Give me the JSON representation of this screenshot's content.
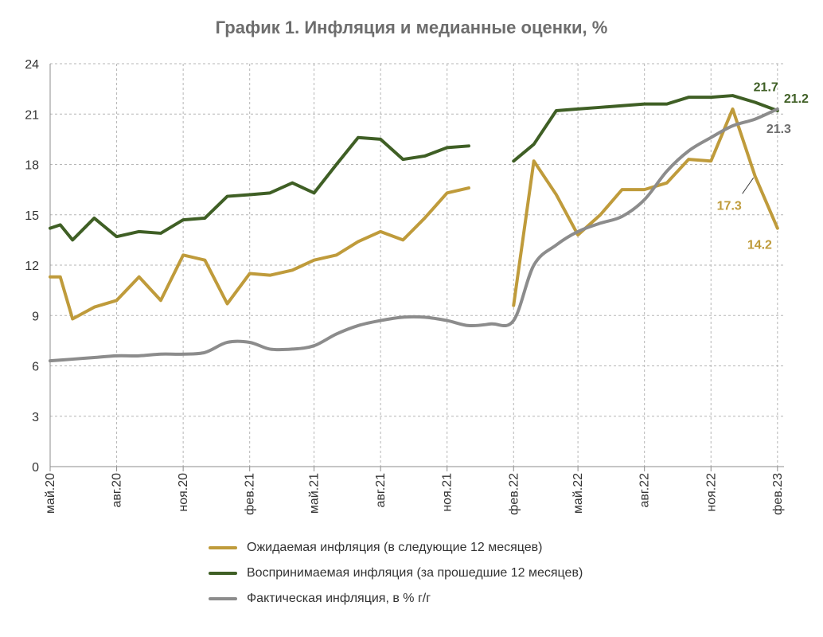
{
  "chart_data": {
    "type": "line",
    "title": "График 1. Инфляция и медианные оценки, %",
    "xlabel": "",
    "ylabel": "",
    "ylim": [
      0,
      24
    ],
    "yticks": [
      0,
      3,
      6,
      9,
      12,
      15,
      18,
      21,
      24
    ],
    "grid": true,
    "legend_position": "bottom",
    "x": [
      "2020-05",
      "2020-06",
      "2020-07",
      "2020-08",
      "2020-09",
      "2020-10",
      "2020-11",
      "2020-12",
      "2021-01",
      "2021-02",
      "2021-03",
      "2021-04",
      "2021-05",
      "2021-06",
      "2021-07",
      "2021-08",
      "2021-09",
      "2021-10",
      "2021-11",
      "2021-12",
      "2022-01",
      "2022-02",
      "2022-03",
      "2022-04",
      "2022-05",
      "2022-06",
      "2022-07",
      "2022-08",
      "2022-09",
      "2022-10",
      "2022-11",
      "2022-12",
      "2023-01",
      "2023-02"
    ],
    "tick_labels": [
      {
        "x": "2020-05",
        "label": "май.20"
      },
      {
        "x": "2020-08",
        "label": "авг.20"
      },
      {
        "x": "2020-11",
        "label": "ноя.20"
      },
      {
        "x": "2021-02",
        "label": "фев.21"
      },
      {
        "x": "2021-05",
        "label": "май.21"
      },
      {
        "x": "2021-08",
        "label": "авг.21"
      },
      {
        "x": "2021-11",
        "label": "ноя.21"
      },
      {
        "x": "2022-02",
        "label": "фев.22"
      },
      {
        "x": "2022-05",
        "label": "май.22"
      },
      {
        "x": "2022-08",
        "label": "авг.22"
      },
      {
        "x": "2022-11",
        "label": "ноя.22"
      },
      {
        "x": "2023-02",
        "label": "фев.23"
      }
    ],
    "series": [
      {
        "name": "Ожидаемая инфляция (в следующие 12 месяцев)",
        "color": "#bf9b3b",
        "smooth": false,
        "points": [
          {
            "x": "2020-05",
            "y": 11.3
          },
          {
            "x": "2020-05-15",
            "y": 11.3
          },
          {
            "x": "2020-06",
            "y": 8.8
          },
          {
            "x": "2020-07",
            "y": 9.5
          },
          {
            "x": "2020-08",
            "y": 9.9
          },
          {
            "x": "2020-09",
            "y": 11.3
          },
          {
            "x": "2020-10",
            "y": 9.9
          },
          {
            "x": "2020-11",
            "y": 12.6
          },
          {
            "x": "2020-12",
            "y": 12.3
          },
          {
            "x": "2021-01",
            "y": 9.7
          },
          {
            "x": "2021-02",
            "y": 11.5
          },
          {
            "x": "2021-03",
            "y": 11.4
          },
          {
            "x": "2021-04",
            "y": 11.7
          },
          {
            "x": "2021-05",
            "y": 12.3
          },
          {
            "x": "2021-06",
            "y": 12.6
          },
          {
            "x": "2021-07",
            "y": 13.4
          },
          {
            "x": "2021-08",
            "y": 14.0
          },
          {
            "x": "2021-09",
            "y": 13.5
          },
          {
            "x": "2021-10",
            "y": 14.8
          },
          {
            "x": "2021-11",
            "y": 16.3
          },
          {
            "x": "2021-12",
            "y": 16.6
          },
          null,
          {
            "x": "2022-02",
            "y": 9.6
          },
          {
            "x": "2022-03",
            "y": 18.2
          },
          {
            "x": "2022-04",
            "y": 16.2
          },
          {
            "x": "2022-05",
            "y": 13.8
          },
          {
            "x": "2022-06",
            "y": 15.0
          },
          {
            "x": "2022-07",
            "y": 16.5
          },
          {
            "x": "2022-08",
            "y": 16.5
          },
          {
            "x": "2022-09",
            "y": 16.9
          },
          {
            "x": "2022-10",
            "y": 18.3
          },
          {
            "x": "2022-11",
            "y": 18.2
          },
          {
            "x": "2022-12",
            "y": 21.3
          },
          {
            "x": "2023-01",
            "y": 17.3
          },
          {
            "x": "2023-02",
            "y": 14.2
          }
        ]
      },
      {
        "name": "Воспринимаемая инфляция (за прошедшие 12 месяцев)",
        "color": "#3f5f25",
        "smooth": false,
        "points": [
          {
            "x": "2020-05",
            "y": 14.2
          },
          {
            "x": "2020-05-15",
            "y": 14.4
          },
          {
            "x": "2020-06",
            "y": 13.5
          },
          {
            "x": "2020-07",
            "y": 14.8
          },
          {
            "x": "2020-08",
            "y": 13.7
          },
          {
            "x": "2020-09",
            "y": 14.0
          },
          {
            "x": "2020-10",
            "y": 13.9
          },
          {
            "x": "2020-11",
            "y": 14.7
          },
          {
            "x": "2020-12",
            "y": 14.8
          },
          {
            "x": "2021-01",
            "y": 16.1
          },
          {
            "x": "2021-02",
            "y": 16.2
          },
          {
            "x": "2021-03",
            "y": 16.3
          },
          {
            "x": "2021-04",
            "y": 16.9
          },
          {
            "x": "2021-05",
            "y": 16.3
          },
          {
            "x": "2021-06",
            "y": 18.0
          },
          {
            "x": "2021-07",
            "y": 19.6
          },
          {
            "x": "2021-08",
            "y": 19.5
          },
          {
            "x": "2021-09",
            "y": 18.3
          },
          {
            "x": "2021-10",
            "y": 18.5
          },
          {
            "x": "2021-11",
            "y": 19.0
          },
          {
            "x": "2021-12",
            "y": 19.1
          },
          null,
          {
            "x": "2022-02",
            "y": 18.2
          },
          {
            "x": "2022-03",
            "y": 19.2
          },
          {
            "x": "2022-04",
            "y": 21.2
          },
          {
            "x": "2022-05",
            "y": 21.3
          },
          {
            "x": "2022-06",
            "y": 21.4
          },
          {
            "x": "2022-07",
            "y": 21.5
          },
          {
            "x": "2022-08",
            "y": 21.6
          },
          {
            "x": "2022-09",
            "y": 21.6
          },
          {
            "x": "2022-10",
            "y": 22.0
          },
          {
            "x": "2022-11",
            "y": 22.0
          },
          {
            "x": "2022-12",
            "y": 22.1
          },
          {
            "x": "2023-01",
            "y": 21.7
          },
          {
            "x": "2023-02",
            "y": 21.2
          }
        ]
      },
      {
        "name": "Фактическая инфляция, в % г/г",
        "color": "#8c8c8c",
        "smooth": true,
        "points": [
          {
            "x": "2020-05",
            "y": 6.3
          },
          {
            "x": "2020-06",
            "y": 6.4
          },
          {
            "x": "2020-07",
            "y": 6.5
          },
          {
            "x": "2020-08",
            "y": 6.6
          },
          {
            "x": "2020-09",
            "y": 6.6
          },
          {
            "x": "2020-10",
            "y": 6.7
          },
          {
            "x": "2020-11",
            "y": 6.7
          },
          {
            "x": "2020-12",
            "y": 6.8
          },
          {
            "x": "2021-01",
            "y": 7.4
          },
          {
            "x": "2021-02",
            "y": 7.4
          },
          {
            "x": "2021-03",
            "y": 7.0
          },
          {
            "x": "2021-04",
            "y": 7.0
          },
          {
            "x": "2021-05",
            "y": 7.2
          },
          {
            "x": "2021-06",
            "y": 7.9
          },
          {
            "x": "2021-07",
            "y": 8.4
          },
          {
            "x": "2021-08",
            "y": 8.7
          },
          {
            "x": "2021-09",
            "y": 8.9
          },
          {
            "x": "2021-10",
            "y": 8.9
          },
          {
            "x": "2021-11",
            "y": 8.7
          },
          {
            "x": "2021-12",
            "y": 8.4
          },
          {
            "x": "2022-01",
            "y": 8.5
          },
          {
            "x": "2022-02",
            "y": 8.7
          },
          {
            "x": "2022-03",
            "y": 12.0
          },
          {
            "x": "2022-04",
            "y": 13.2
          },
          {
            "x": "2022-05",
            "y": 14.0
          },
          {
            "x": "2022-06",
            "y": 14.5
          },
          {
            "x": "2022-07",
            "y": 14.9
          },
          {
            "x": "2022-08",
            "y": 15.9
          },
          {
            "x": "2022-09",
            "y": 17.6
          },
          {
            "x": "2022-10",
            "y": 18.8
          },
          {
            "x": "2022-11",
            "y": 19.6
          },
          {
            "x": "2022-12",
            "y": 20.3
          },
          {
            "x": "2023-01",
            "y": 20.7
          },
          {
            "x": "2023-02",
            "y": 21.3
          }
        ]
      }
    ],
    "annotations": [
      {
        "text": "21.7",
        "series": 1,
        "x": "2023-01",
        "y": 21.7
      },
      {
        "text": "21.2",
        "series": 1,
        "x": "2023-02",
        "y": 21.2
      },
      {
        "text": "21.3",
        "series": 2,
        "x": "2023-02",
        "y": 21.3
      },
      {
        "text": "17.3",
        "series": 0,
        "x": "2023-01",
        "y": 17.3
      },
      {
        "text": "14.2",
        "series": 0,
        "x": "2023-02",
        "y": 14.2
      }
    ]
  }
}
